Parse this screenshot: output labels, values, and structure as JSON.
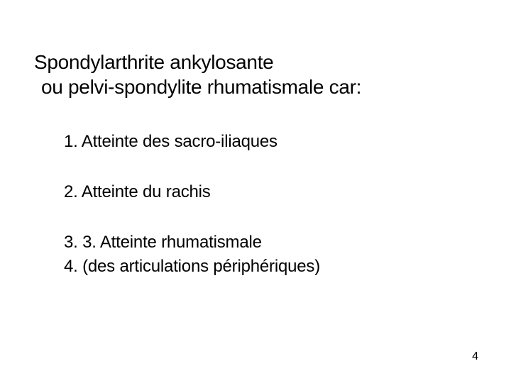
{
  "title": {
    "line1": "Spondylarthrite ankylosante",
    "line2": "ou pelvi-spondylite rhumatismale car:"
  },
  "items": {
    "i1": "1. Atteinte des sacro-iliaques",
    "i2": "2. Atteinte du rachis",
    "i3": "3. 3. Atteinte rhumatismale",
    "i4": "4. (des articulations périphériques)"
  },
  "page_number": "4",
  "colors": {
    "background": "#ffffff",
    "text": "#000000"
  },
  "typography": {
    "title_fontsize": 28,
    "body_fontsize": 24,
    "footer_fontsize": 16,
    "font_family": "Arial"
  }
}
